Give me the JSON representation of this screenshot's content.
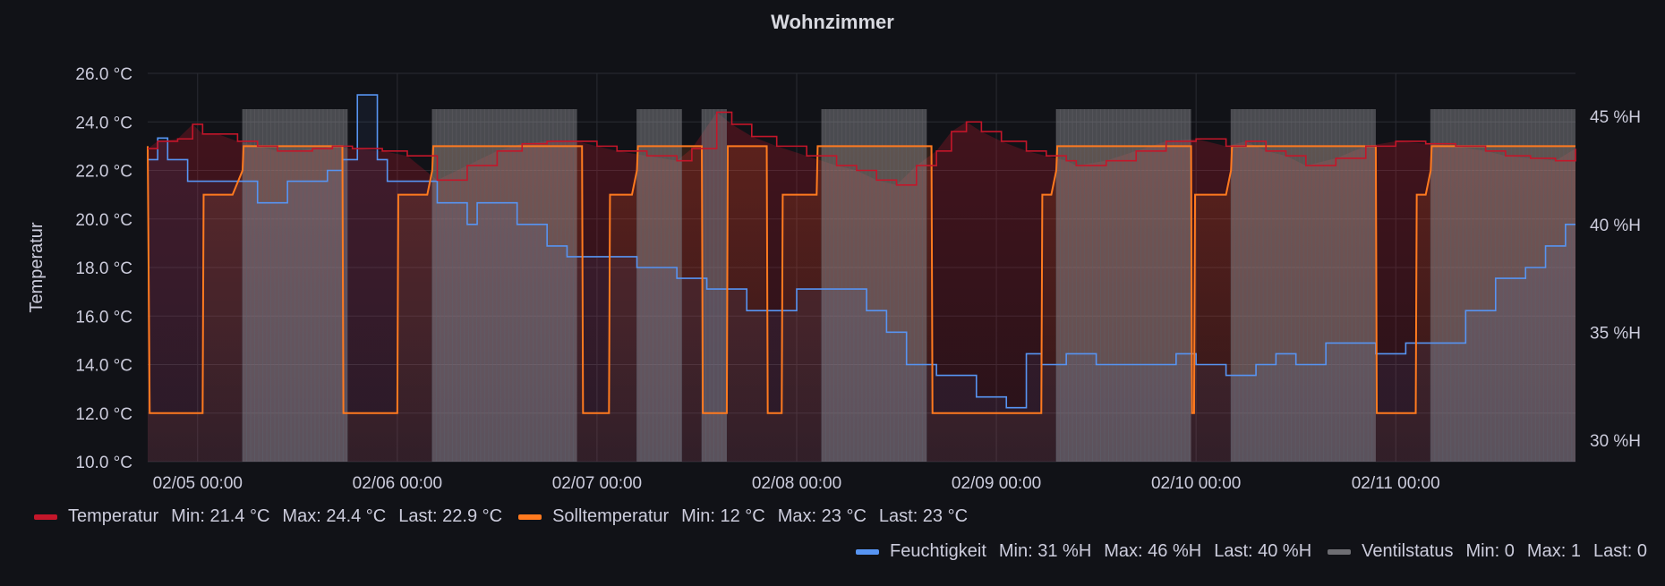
{
  "panel": {
    "title": "Wohnzimmer"
  },
  "chart_data": {
    "type": "line",
    "title": "Wohnzimmer",
    "ylabel_left": "Temperatur",
    "ylabel_right": "",
    "x_ticks": [
      "02/05 00:00",
      "02/06 00:00",
      "02/07 00:00",
      "02/08 00:00",
      "02/09 00:00",
      "02/10 00:00",
      "02/11 00:00"
    ],
    "x_range": [
      "02/04 18:00",
      "02/11 20:00"
    ],
    "y_left_ticks": [
      "10.0 °C",
      "12.0 °C",
      "14.0 °C",
      "16.0 °C",
      "18.0 °C",
      "20.0 °C",
      "22.0 °C",
      "24.0 °C",
      "26.0 °C"
    ],
    "y_left_range": [
      10,
      26
    ],
    "y_right_ticks": [
      "30 %H",
      "35 %H",
      "40 %H",
      "45 %H"
    ],
    "y_right_range": [
      29,
      47
    ],
    "grid": true,
    "legend_placement": "bottom",
    "series": [
      {
        "name": "Temperatur",
        "color": "#c4162a",
        "axis": "left",
        "style": "line-fill",
        "points": [
          [
            0,
            22.9
          ],
          [
            0.1,
            23.2
          ],
          [
            0.3,
            23.3
          ],
          [
            0.45,
            23.9
          ],
          [
            0.55,
            23.5
          ],
          [
            0.7,
            23.5
          ],
          [
            0.9,
            23.2
          ],
          [
            1.1,
            23.0
          ],
          [
            1.3,
            22.8
          ],
          [
            1.5,
            22.8
          ],
          [
            1.65,
            22.9
          ],
          [
            1.75,
            22.9
          ],
          [
            1.85,
            23.0
          ],
          [
            2.05,
            22.9
          ],
          [
            2.35,
            22.8
          ],
          [
            2.6,
            22.6
          ],
          [
            2.9,
            21.6
          ],
          [
            3.2,
            22.2
          ],
          [
            3.5,
            22.8
          ],
          [
            3.75,
            23.1
          ],
          [
            4.0,
            23.2
          ],
          [
            4.3,
            23.2
          ],
          [
            4.5,
            23.0
          ],
          [
            4.7,
            22.8
          ],
          [
            5.0,
            22.6
          ],
          [
            5.3,
            22.4
          ],
          [
            5.45,
            22.9
          ],
          [
            5.7,
            24.4
          ],
          [
            5.85,
            23.9
          ],
          [
            6.05,
            23.4
          ],
          [
            6.3,
            23.0
          ],
          [
            6.6,
            22.6
          ],
          [
            6.9,
            22.2
          ],
          [
            7.1,
            22.0
          ],
          [
            7.3,
            21.6
          ],
          [
            7.5,
            21.4
          ],
          [
            7.7,
            22.2
          ],
          [
            7.9,
            22.8
          ],
          [
            8.05,
            23.6
          ],
          [
            8.2,
            24.0
          ],
          [
            8.35,
            23.6
          ],
          [
            8.55,
            23.2
          ],
          [
            8.8,
            22.8
          ],
          [
            9.0,
            22.6
          ],
          [
            9.2,
            22.4
          ],
          [
            9.3,
            22.2
          ],
          [
            9.6,
            22.4
          ],
          [
            9.9,
            22.8
          ],
          [
            10.2,
            23.2
          ],
          [
            10.5,
            23.3
          ],
          [
            10.8,
            23.0
          ],
          [
            11.0,
            23.2
          ],
          [
            11.2,
            22.8
          ],
          [
            11.4,
            22.6
          ],
          [
            11.6,
            22.2
          ],
          [
            11.9,
            22.5
          ],
          [
            12.2,
            23.0
          ],
          [
            12.5,
            23.2
          ],
          [
            12.8,
            23.1
          ],
          [
            13.1,
            23.0
          ],
          [
            13.4,
            22.8
          ],
          [
            13.6,
            22.6
          ],
          [
            13.85,
            22.5
          ],
          [
            14.1,
            22.4
          ],
          [
            14.3,
            22.9
          ]
        ]
      },
      {
        "name": "Solltemperatur",
        "color": "#ff7a1f",
        "axis": "left",
        "style": "step",
        "points": [
          [
            0,
            23
          ],
          [
            0.02,
            12
          ],
          [
            0.55,
            12
          ],
          [
            0.56,
            21
          ],
          [
            0.85,
            21
          ],
          [
            0.95,
            22
          ],
          [
            0.96,
            23
          ],
          [
            1.95,
            23
          ],
          [
            1.96,
            12
          ],
          [
            2.5,
            12
          ],
          [
            2.51,
            21
          ],
          [
            2.8,
            21
          ],
          [
            2.85,
            22
          ],
          [
            2.86,
            23
          ],
          [
            4.35,
            23
          ],
          [
            4.36,
            12
          ],
          [
            4.62,
            12
          ],
          [
            4.63,
            21
          ],
          [
            4.85,
            21
          ],
          [
            4.9,
            22
          ],
          [
            4.91,
            23
          ],
          [
            5.55,
            23
          ],
          [
            5.56,
            12
          ],
          [
            5.8,
            12
          ],
          [
            5.81,
            23
          ],
          [
            6.2,
            23
          ],
          [
            6.21,
            12
          ],
          [
            6.35,
            12
          ],
          [
            6.36,
            21
          ],
          [
            6.7,
            21
          ],
          [
            6.71,
            23
          ],
          [
            7.85,
            23
          ],
          [
            7.86,
            12
          ],
          [
            8.95,
            12
          ],
          [
            8.96,
            21
          ],
          [
            9.05,
            21
          ],
          [
            9.1,
            22
          ],
          [
            9.11,
            23
          ],
          [
            10.45,
            23
          ],
          [
            10.46,
            12
          ],
          [
            10.48,
            12
          ],
          [
            10.49,
            21
          ],
          [
            10.8,
            21
          ],
          [
            10.85,
            22
          ],
          [
            10.86,
            23
          ],
          [
            12.3,
            23
          ],
          [
            12.31,
            12
          ],
          [
            12.7,
            12
          ],
          [
            12.71,
            21
          ],
          [
            12.8,
            21
          ],
          [
            12.85,
            22
          ],
          [
            12.86,
            23
          ],
          [
            14.3,
            23
          ]
        ]
      },
      {
        "name": "Feuchtigkeit",
        "color": "#5794f2",
        "axis": "right",
        "style": "step-fill",
        "points": [
          [
            0,
            43
          ],
          [
            0.1,
            44
          ],
          [
            0.2,
            43
          ],
          [
            0.4,
            42
          ],
          [
            0.8,
            42
          ],
          [
            1.1,
            41
          ],
          [
            1.4,
            42
          ],
          [
            1.8,
            42.5
          ],
          [
            1.95,
            43
          ],
          [
            2.1,
            46
          ],
          [
            2.3,
            43
          ],
          [
            2.4,
            42
          ],
          [
            2.5,
            42
          ],
          [
            2.7,
            42
          ],
          [
            2.9,
            41
          ],
          [
            3.2,
            40
          ],
          [
            3.3,
            41
          ],
          [
            3.7,
            40
          ],
          [
            4.0,
            39
          ],
          [
            4.2,
            38.5
          ],
          [
            4.9,
            38
          ],
          [
            5.3,
            37.5
          ],
          [
            5.6,
            37
          ],
          [
            6.0,
            36
          ],
          [
            6.5,
            37
          ],
          [
            7.2,
            36
          ],
          [
            7.4,
            35
          ],
          [
            7.6,
            33.5
          ],
          [
            7.9,
            33
          ],
          [
            8.3,
            32
          ],
          [
            8.6,
            31.5
          ],
          [
            8.8,
            34
          ],
          [
            8.95,
            33.5
          ],
          [
            9.2,
            34
          ],
          [
            9.5,
            33.5
          ],
          [
            10.0,
            33.5
          ],
          [
            10.3,
            34
          ],
          [
            10.5,
            33.5
          ],
          [
            10.8,
            33
          ],
          [
            11.1,
            33.5
          ],
          [
            11.3,
            34
          ],
          [
            11.5,
            33.5
          ],
          [
            11.8,
            34.5
          ],
          [
            12.3,
            34
          ],
          [
            12.6,
            34.5
          ],
          [
            12.9,
            34.5
          ],
          [
            13.2,
            36
          ],
          [
            13.5,
            37.5
          ],
          [
            13.8,
            38
          ],
          [
            14.0,
            39
          ],
          [
            14.2,
            40
          ],
          [
            14.3,
            40
          ]
        ]
      },
      {
        "name": "Ventilstatus",
        "color": "#8e8e8e",
        "axis": "hidden",
        "style": "state-bars",
        "on_intervals": [
          [
            0.95,
            2.0
          ],
          [
            2.85,
            4.3
          ],
          [
            4.9,
            5.35
          ],
          [
            5.55,
            5.8
          ],
          [
            6.75,
            7.8
          ],
          [
            9.1,
            10.45
          ],
          [
            10.85,
            12.3
          ],
          [
            12.85,
            14.3
          ]
        ]
      }
    ],
    "x_ticks_pos": [
      0.5,
      2.5,
      4.5,
      6.5,
      8.5,
      10.5,
      12.5
    ],
    "x_max": 14.3
  },
  "legend": {
    "row1": [
      {
        "name": "Temperatur",
        "color": "#c4162a",
        "min": "Min: 21.4 °C",
        "max": "Max: 24.4 °C",
        "last": "Last: 22.9 °C"
      },
      {
        "name": "Solltemperatur",
        "color": "#ff7a1f",
        "min": "Min: 12 °C",
        "max": "Max: 23 °C",
        "last": "Last: 23 °C"
      }
    ],
    "row2": [
      {
        "name": "Feuchtigkeit",
        "color": "#5794f2",
        "min": "Min: 31 %H",
        "max": "Max: 46 %H",
        "last": "Last: 40 %H"
      },
      {
        "name": "Ventilstatus",
        "color": "#6e6e73",
        "min": "Min: 0",
        "max": "Max: 1",
        "last": "Last: 0"
      }
    ]
  }
}
